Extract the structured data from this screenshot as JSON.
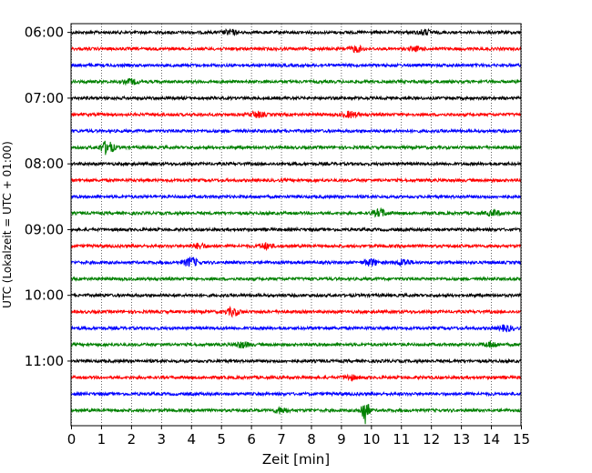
{
  "chart_data": {
    "type": "line",
    "title": "",
    "xlabel": "Zeit  [min]",
    "ylabel": "UTC (Lokalzeit = UTC + 01:00)",
    "xlim": [
      0,
      15
    ],
    "x_ticks": [
      0,
      1,
      2,
      3,
      4,
      5,
      6,
      7,
      8,
      9,
      10,
      11,
      12,
      13,
      14,
      15
    ],
    "y_time_range": [
      "05:52",
      "11:59"
    ],
    "y_tick_labels": [
      "06:00",
      "07:00",
      "08:00",
      "09:00",
      "10:00",
      "11:00"
    ],
    "grid": {
      "vertical": "dotted",
      "horizontal": "none"
    },
    "trace_interval_minutes": 15,
    "color_cycle": [
      "#000000",
      "#ff0000",
      "#0000ff",
      "#008000"
    ],
    "traces": [
      {
        "start": "06:00",
        "color": "#000000",
        "events": [
          {
            "min": 5.3,
            "amp": 2.5
          },
          {
            "min": 11.8,
            "amp": 2.5
          }
        ]
      },
      {
        "start": "06:15",
        "color": "#ff0000",
        "events": [
          {
            "min": 9.5,
            "amp": 3
          },
          {
            "min": 11.5,
            "amp": 2
          }
        ]
      },
      {
        "start": "06:30",
        "color": "#0000ff",
        "events": []
      },
      {
        "start": "06:45",
        "color": "#008000",
        "events": [
          {
            "min": 2.0,
            "amp": 2.5
          }
        ]
      },
      {
        "start": "07:00",
        "color": "#000000",
        "events": []
      },
      {
        "start": "07:15",
        "color": "#ff0000",
        "events": [
          {
            "min": 6.2,
            "amp": 3
          },
          {
            "min": 9.3,
            "amp": 3
          }
        ]
      },
      {
        "start": "07:30",
        "color": "#0000ff",
        "events": []
      },
      {
        "start": "07:45",
        "color": "#008000",
        "events": [
          {
            "min": 1.2,
            "amp": 7
          }
        ]
      },
      {
        "start": "08:00",
        "color": "#000000",
        "events": []
      },
      {
        "start": "08:15",
        "color": "#ff0000",
        "events": []
      },
      {
        "start": "08:30",
        "color": "#0000ff",
        "events": []
      },
      {
        "start": "08:45",
        "color": "#008000",
        "events": [
          {
            "min": 10.3,
            "amp": 4
          },
          {
            "min": 14.1,
            "amp": 3
          }
        ]
      },
      {
        "start": "09:00",
        "color": "#000000",
        "events": []
      },
      {
        "start": "09:15",
        "color": "#ff0000",
        "events": [
          {
            "min": 4.3,
            "amp": 2.5
          },
          {
            "min": 6.5,
            "amp": 3
          }
        ]
      },
      {
        "start": "09:30",
        "color": "#0000ff",
        "events": [
          {
            "min": 4.0,
            "amp": 5
          },
          {
            "min": 10.0,
            "amp": 3.5
          },
          {
            "min": 11.1,
            "amp": 3.5
          }
        ]
      },
      {
        "start": "09:45",
        "color": "#008000",
        "events": []
      },
      {
        "start": "10:00",
        "color": "#000000",
        "events": []
      },
      {
        "start": "10:15",
        "color": "#ff0000",
        "events": [
          {
            "min": 5.4,
            "amp": 4
          }
        ]
      },
      {
        "start": "10:30",
        "color": "#0000ff",
        "events": [
          {
            "min": 14.5,
            "amp": 3
          }
        ]
      },
      {
        "start": "10:45",
        "color": "#008000",
        "events": [
          {
            "min": 5.7,
            "amp": 3
          },
          {
            "min": 14.0,
            "amp": 3
          }
        ]
      },
      {
        "start": "11:00",
        "color": "#000000",
        "events": []
      },
      {
        "start": "11:15",
        "color": "#ff0000",
        "events": [
          {
            "min": 9.3,
            "amp": 2.5
          }
        ]
      },
      {
        "start": "11:30",
        "color": "#0000ff",
        "events": []
      },
      {
        "start": "11:45",
        "color": "#008000",
        "events": [
          {
            "min": 7.0,
            "amp": 3
          },
          {
            "min": 9.8,
            "amp": 15
          }
        ]
      }
    ]
  }
}
